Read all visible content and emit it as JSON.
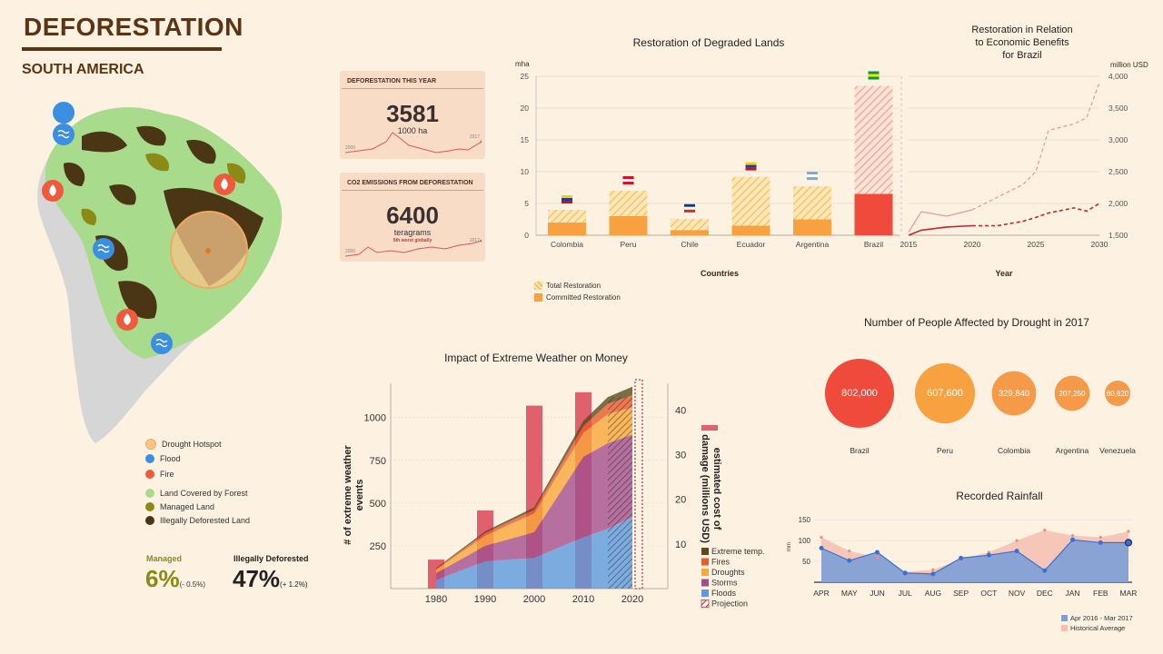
{
  "header": {
    "title": "DEFORESTATION",
    "subtitle": "SOUTH AMERICA"
  },
  "colors": {
    "brown": "#5a3515",
    "forest": "#a8dc8c",
    "managed": "#8a8a15",
    "deforested": "#4a3515",
    "drought": "#f5c489",
    "flood": "#3b8fe0",
    "fire": "#ef5a3c",
    "committed": "#f7a140",
    "total": "#f7cf8a",
    "brazil": "#ef4a3c"
  },
  "map_legend": [
    {
      "icon": "drought-hotspot-icon",
      "label": "Drought Hotspot"
    },
    {
      "icon": "flood-icon",
      "label": "Flood"
    },
    {
      "icon": "fire-icon",
      "label": "Fire"
    },
    {
      "icon": "forest-dot-icon",
      "label": "Land Covered by Forest"
    },
    {
      "icon": "managed-dot-icon",
      "label": "Managed Land"
    },
    {
      "icon": "deforested-dot-icon",
      "label": "Illegally Deforested Land"
    }
  ],
  "stats": {
    "managed": {
      "label": "Managed",
      "value": "6%",
      "change": "(- 0.5%)"
    },
    "deforested": {
      "label": "Illegally Deforested",
      "value": "47%",
      "change": "(+ 1.2%)"
    }
  },
  "cards": {
    "deforestation": {
      "header": "DEFORESTATION THIS YEAR",
      "value": "3581",
      "unit": "1000 ha",
      "start": "2000",
      "end": "2017"
    },
    "co2": {
      "header": "CO2 EMISSIONS FROM DEFORESTATION",
      "value": "6400",
      "unit": "teragrams",
      "note": "5th worst globally",
      "start": "2000",
      "end": "2017"
    }
  },
  "chart_data": [
    {
      "id": "restoration",
      "type": "bar",
      "title": "Restoration of Degraded Lands",
      "xlabel": "Countries",
      "ylabel": "mha",
      "ylim": [
        0,
        25
      ],
      "yticks": [
        "0",
        "5",
        "10",
        "15",
        "20",
        "25"
      ],
      "categories": [
        "Colombia",
        "Peru",
        "Chile",
        "Ecuador",
        "Argentina",
        "Brazil"
      ],
      "series": [
        {
          "name": "Total Restoration",
          "values": [
            4,
            7,
            2.6,
            9.2,
            7.7,
            23.5
          ]
        },
        {
          "name": "Committed Restoration",
          "values": [
            2,
            3,
            0.8,
            1.5,
            2.5,
            6.5
          ]
        }
      ],
      "legend": [
        "Total Restoration",
        "Committed Restoration"
      ]
    },
    {
      "id": "economic",
      "type": "line",
      "title": "Restoration in Relation to Economic Benefits for Brazil",
      "title_lines": [
        "Restoration in Relation",
        "to Economic Benefits",
        "for Brazil"
      ],
      "xlabel": "Year",
      "ylabel": "million USD",
      "ylim": [
        1500,
        4000
      ],
      "xlim": [
        2015,
        2030
      ],
      "xticks": [
        "2015",
        "2020",
        "2025",
        "2030"
      ],
      "yticks": [
        "1,500",
        "2,000",
        "2,500",
        "3,000",
        "3,500",
        "4,000"
      ],
      "series": [
        {
          "x": [
            2015,
            2016,
            2018,
            2020,
            2022,
            2024,
            2025,
            2026,
            2028,
            2029,
            2030
          ],
          "y": [
            1550,
            1870,
            1800,
            1900,
            2100,
            2300,
            2500,
            3150,
            3250,
            3350,
            3900
          ]
        },
        {
          "x": [
            2015,
            2016,
            2018,
            2020,
            2022,
            2024,
            2025,
            2026,
            2028,
            2029,
            2030
          ],
          "y": [
            1500,
            1580,
            1630,
            1650,
            1650,
            1720,
            1780,
            1850,
            1930,
            1880,
            2000
          ]
        }
      ]
    },
    {
      "id": "drought",
      "type": "bubble",
      "title": "Number of People Affected by Drought in 2017",
      "categories": [
        "Brazil",
        "Peru",
        "Colombia",
        "Argentina",
        "Venezuela"
      ],
      "values": [
        802000,
        607600,
        329840,
        207250,
        60820
      ],
      "labels": [
        "802,000",
        "607,600",
        "329,840",
        "207,250",
        "60,820"
      ]
    },
    {
      "id": "weather",
      "type": "area",
      "title": "Impact of Extreme Weather on Money",
      "ylabel": "# of extreme weather events",
      "y2label": "estimated cost of damage (millions USD)",
      "ylim": [
        0,
        1200
      ],
      "y2lim": [
        0,
        46
      ],
      "yticks": [
        "250",
        "500",
        "750",
        "1000"
      ],
      "y2ticks": [
        "10",
        "20",
        "30",
        "40"
      ],
      "xticks": [
        "1980",
        "1990",
        "2000",
        "2010",
        "2020"
      ],
      "x": [
        1980,
        1990,
        2000,
        2010,
        2015,
        2020
      ],
      "series": [
        {
          "name": "Floods",
          "values": [
            50,
            160,
            180,
            300,
            350,
            420
          ]
        },
        {
          "name": "Storms",
          "values": [
            40,
            90,
            150,
            470,
            500,
            480
          ]
        },
        {
          "name": "Droughts",
          "values": [
            20,
            60,
            110,
            140,
            170,
            160
          ]
        },
        {
          "name": "Fires",
          "values": [
            5,
            15,
            20,
            40,
            60,
            70
          ]
        },
        {
          "name": "Extreme temp.",
          "values": [
            5,
            10,
            15,
            30,
            40,
            50
          ]
        }
      ],
      "bars": {
        "x": [
          1980,
          1990,
          2000,
          2010
        ],
        "values": [
          6.5,
          17.5,
          41,
          44
        ]
      },
      "legend": [
        "Extreme temp.",
        "Fires",
        "Droughts",
        "Storms",
        "Floods",
        "Projection"
      ]
    },
    {
      "id": "rainfall",
      "type": "area",
      "title": "Recorded Rainfall",
      "ylabel": "mm",
      "ylim": [
        0,
        170
      ],
      "yticks": [
        "50",
        "100",
        "150"
      ],
      "categories": [
        "APR",
        "MAY",
        "JUN",
        "JUL",
        "AUG",
        "SEP",
        "OCT",
        "NOV",
        "DEC",
        "JAN",
        "FEB",
        "MAR"
      ],
      "series": [
        {
          "name": "Apr 2016 - Mar 2017",
          "values": [
            82,
            52,
            72,
            22,
            20,
            58,
            65,
            75,
            28,
            102,
            95,
            95
          ]
        },
        {
          "name": "Historical Average",
          "values": [
            108,
            75,
            60,
            25,
            30,
            55,
            72,
            100,
            125,
            112,
            108,
            122
          ]
        }
      ]
    }
  ]
}
